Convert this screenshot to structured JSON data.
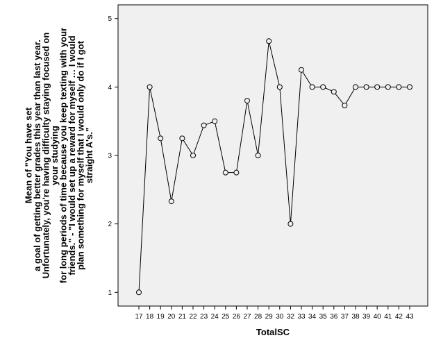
{
  "chart_data": {
    "type": "line",
    "xlabel": "TotalSC",
    "ylabel_lines": [
      "Mean of \"You have set",
      "a goal of getting better grades this year than last year.",
      "Unfortunately, you're having difficulty staying focused on",
      "your studying",
      "for long periods of time because you keep texting with your",
      "friends.\" - \"I would set up a reward for myself … I would",
      "plan something for myself that I would only do if I got",
      "straight A's.\""
    ],
    "categories": [
      "17",
      "18",
      "19",
      "20",
      "21",
      "22",
      "23",
      "24",
      "25",
      "26",
      "27",
      "28",
      "29",
      "30",
      "32",
      "33",
      "34",
      "35",
      "36",
      "37",
      "38",
      "39",
      "40",
      "41",
      "42",
      "43"
    ],
    "values": [
      1.0,
      4.0,
      3.25,
      2.33,
      3.25,
      3.0,
      3.44,
      3.5,
      2.75,
      2.75,
      3.8,
      3.0,
      4.67,
      4.0,
      2.0,
      4.25,
      4.0,
      4.0,
      3.93,
      3.73,
      4.0,
      4.0,
      4.0,
      4.0,
      4.0,
      4.0
    ],
    "yticks": [
      1,
      2,
      3,
      4,
      5
    ],
    "ylim": [
      0.8,
      5.2
    ],
    "grid": false,
    "marker": "open-circle",
    "colors": {
      "line": "#000000",
      "plot_bg": "#f0f0f0",
      "frame": "#000000"
    }
  }
}
